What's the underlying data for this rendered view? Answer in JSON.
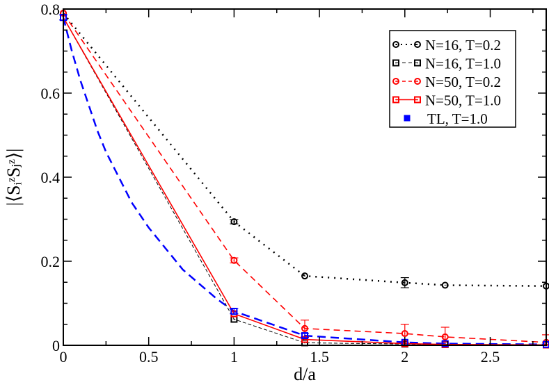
{
  "chart_data": {
    "type": "line",
    "xlabel": "d/a",
    "ylabel": "|⟨SᵢᶻSⱼᶻ⟩|",
    "xlim": [
      0,
      2.828
    ],
    "ylim": [
      0,
      0.8
    ],
    "xticks": [
      0,
      0.5,
      1,
      1.5,
      2,
      2.5
    ],
    "xtick_labels": [
      "0",
      "0.5",
      "1",
      "1.5",
      "2",
      "2.5"
    ],
    "yticks": [
      0,
      0.2,
      0.4,
      0.6,
      0.8
    ],
    "ytick_labels": [
      "0",
      "0.2",
      "0.4",
      "0.6",
      "0.8"
    ],
    "grid": false,
    "legend_position": "top-right",
    "series": [
      {
        "name": "N=16, T=0.2",
        "color": "#000000",
        "marker": "circle",
        "line": "dotted",
        "x": [
          0,
          1,
          1.414,
          2,
          2.236,
          2.828
        ],
        "y": [
          0.79,
          0.294,
          0.165,
          0.149,
          0.143,
          0.141
        ],
        "yerr": [
          0.004,
          0.005,
          0.004,
          0.012,
          0.004,
          0.004
        ]
      },
      {
        "name": "N=16, T=1.0",
        "color": "#000000",
        "marker": "square",
        "line": "dashed-thin",
        "x": [
          0,
          1,
          1.414,
          2,
          2.236,
          2.828
        ],
        "y": [
          0.78,
          0.062,
          0.006,
          0.003,
          0.002,
          0.001
        ],
        "yerr": [
          0.003,
          0.003,
          0.002,
          0.002,
          0.002,
          0.002
        ]
      },
      {
        "name": "N=50, T=0.2",
        "color": "#ff0000",
        "marker": "circle",
        "line": "dashed",
        "x": [
          0,
          1,
          1.414,
          2,
          2.236,
          2.828
        ],
        "y": [
          0.79,
          0.202,
          0.04,
          0.028,
          0.02,
          0.007
        ],
        "yerr": [
          0.004,
          0.006,
          0.02,
          0.022,
          0.023,
          0.018
        ]
      },
      {
        "name": "N=50, T=1.0",
        "color": "#ff0000",
        "marker": "square",
        "line": "solid",
        "x": [
          0,
          1,
          1.414,
          2,
          2.236,
          2.828
        ],
        "y": [
          0.78,
          0.075,
          0.014,
          0.004,
          0.002,
          0.001
        ],
        "yerr": [
          0.003,
          0.003,
          0.002,
          0.002,
          0.002,
          0.002
        ]
      },
      {
        "name": "TL, T=1.0",
        "color": "#0000ff",
        "marker": "square",
        "line": "none",
        "x": [
          0,
          1,
          1.414,
          2,
          2.236,
          2.828
        ],
        "y": [
          0.78,
          0.081,
          0.023,
          0.007,
          0.004,
          0.002
        ],
        "yerr": [
          0.006,
          0.006,
          0.005,
          0.004,
          0.003,
          0.003
        ]
      }
    ],
    "curve": {
      "color": "#0000ff",
      "line": "dashed-thick",
      "x": [
        0,
        0.05,
        0.1,
        0.15,
        0.2,
        0.25,
        0.3,
        0.35,
        0.4,
        0.45,
        0.5,
        0.6,
        0.7,
        0.8,
        0.9,
        1,
        1.414,
        2,
        2.236,
        2.828
      ],
      "y": [
        0.78,
        0.7,
        0.63,
        0.57,
        0.51,
        0.46,
        0.42,
        0.38,
        0.34,
        0.31,
        0.28,
        0.23,
        0.18,
        0.145,
        0.11,
        0.081,
        0.023,
        0.007,
        0.004,
        0.002
      ]
    }
  }
}
